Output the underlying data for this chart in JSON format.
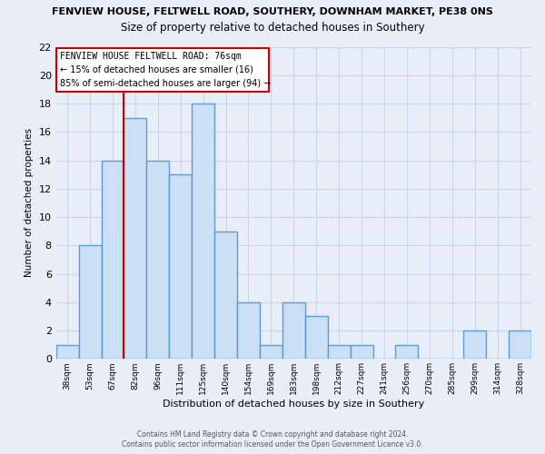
{
  "title": "FENVIEW HOUSE, FELTWELL ROAD, SOUTHERY, DOWNHAM MARKET, PE38 0NS",
  "subtitle": "Size of property relative to detached houses in Southery",
  "xlabel": "Distribution of detached houses by size in Southery",
  "ylabel": "Number of detached properties",
  "bin_labels": [
    "38sqm",
    "53sqm",
    "67sqm",
    "82sqm",
    "96sqm",
    "111sqm",
    "125sqm",
    "140sqm",
    "154sqm",
    "169sqm",
    "183sqm",
    "198sqm",
    "212sqm",
    "227sqm",
    "241sqm",
    "256sqm",
    "270sqm",
    "285sqm",
    "299sqm",
    "314sqm",
    "328sqm"
  ],
  "bar_heights": [
    1,
    8,
    14,
    17,
    14,
    13,
    18,
    9,
    4,
    1,
    4,
    3,
    1,
    1,
    0,
    1,
    0,
    0,
    2,
    0,
    2
  ],
  "bar_color": "#cce0f5",
  "bar_edge_color": "#5b9bd5",
  "bar_edge_width": 1.0,
  "vline_bin_index": 3,
  "vline_color": "#cc0000",
  "ylim": [
    0,
    22
  ],
  "yticks": [
    0,
    2,
    4,
    6,
    8,
    10,
    12,
    14,
    16,
    18,
    20,
    22
  ],
  "annotation_text_line1": "FENVIEW HOUSE FELTWELL ROAD: 76sqm",
  "annotation_text_line2": "← 15% of detached houses are smaller (16)",
  "annotation_text_line3": "85% of semi-detached houses are larger (94) →",
  "annotation_box_color": "#ffffff",
  "annotation_box_edge_color": "#cc0000",
  "footer_line1": "Contains HM Land Registry data © Crown copyright and database right 2024.",
  "footer_line2": "Contains public sector information licensed under the Open Government Licence v3.0.",
  "grid_color": "#c8d4e8",
  "bg_color": "#e8eef8",
  "n_bins": 21
}
